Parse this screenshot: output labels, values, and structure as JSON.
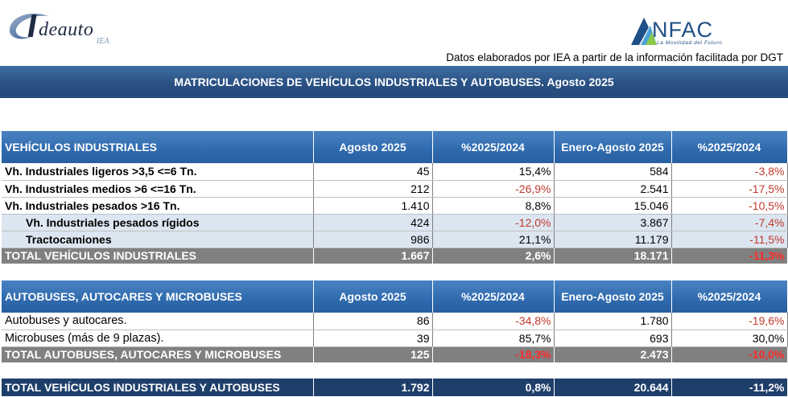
{
  "logos": {
    "left": {
      "main": "deauto",
      "initial": "I",
      "sub": "IEA"
    },
    "right": {
      "main": "NFAC",
      "initial": "A",
      "tagline": "La Movilidad del Futuro"
    }
  },
  "source_note": "Datos elaborados por IEA a partir de la información facilitada por DGT",
  "title": "MATRICULACIONES DE VEHÍCULOS INDUSTRIALES Y AUTOBUSES.  Agosto 2025",
  "colors": {
    "header_blue": "#2f6aae",
    "banner_blue": "#2a5183",
    "total_gray": "#808080",
    "grand_navy": "#1f3f6b",
    "negative_red": "#c0392b",
    "subrow_bg": "#dce6f1"
  },
  "industrial": {
    "headers": [
      "VEHÍCULOS INDUSTRIALES",
      "Agosto 2025",
      "%2025/2024",
      "Enero-Agosto 2025",
      "%2025/2024"
    ],
    "rows": [
      {
        "label": "Vh. Industriales ligeros >3,5 <=6 Tn.",
        "aug": "45",
        "aug_pct": "15,4%",
        "ytd": "584",
        "ytd_pct": "-3,8%"
      },
      {
        "label": "Vh. Industriales medios >6  <=16 Tn.",
        "aug": "212",
        "aug_pct": "-26,9%",
        "ytd": "2.541",
        "ytd_pct": "-17,5%"
      },
      {
        "label": "Vh. Industriales  pesados >16 Tn.",
        "aug": "1.410",
        "aug_pct": "8,8%",
        "ytd": "15.046",
        "ytd_pct": "-10,5%"
      },
      {
        "label": "Vh. Industriales pesados rígidos",
        "aug": "424",
        "aug_pct": "-12,0%",
        "ytd": "3.867",
        "ytd_pct": "-7,4%"
      },
      {
        "label": "Tractocamiones",
        "aug": "986",
        "aug_pct": "21,1%",
        "ytd": "11.179",
        "ytd_pct": "-11,5%"
      }
    ],
    "total": {
      "label": "TOTAL VEHÍCULOS INDUSTRIALES",
      "aug": "1.667",
      "aug_pct": "2,6%",
      "ytd": "18.171",
      "ytd_pct": "-11,3%"
    }
  },
  "buses": {
    "headers": [
      "AUTOBUSES, AUTOCARES Y MICROBUSES",
      "Agosto 2025",
      "%2025/2024",
      "Enero-Agosto 2025",
      "%2025/2024"
    ],
    "rows": [
      {
        "label": "Autobuses y autocares.",
        "aug": "86",
        "aug_pct": "-34,8%",
        "ytd": "1.780",
        "ytd_pct": "-19,6%"
      },
      {
        "label": "Microbuses (más de 9 plazas).",
        "aug": "39",
        "aug_pct": "85,7%",
        "ytd": "693",
        "ytd_pct": "30,0%"
      }
    ],
    "total": {
      "label": "TOTAL AUTOBUSES, AUTOCARES Y MICROBUSES",
      "aug": "125",
      "aug_pct": "-18,3%",
      "ytd": "2.473",
      "ytd_pct": "-10,0%"
    }
  },
  "grand_total": {
    "label": "TOTAL VEHÍCULOS INDUSTRIALES Y AUTOBUSES",
    "aug": "1.792",
    "aug_pct": "0,8%",
    "ytd": "20.644",
    "ytd_pct": "-11,2%"
  }
}
